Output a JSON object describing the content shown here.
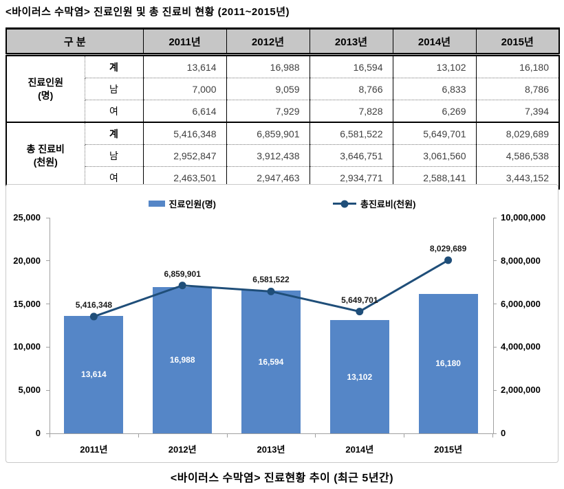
{
  "page": {
    "title": "<바이러스 수막염> 진료인원 및 총 진료비 현황 (2011~2015년)",
    "caption": "<바이러스 수막염> 진료현황 추이 (최근 5년간)"
  },
  "table": {
    "header": [
      "구 분",
      "2011년",
      "2012년",
      "2013년",
      "2014년",
      "2015년"
    ],
    "sections": [
      {
        "label": "진료인원",
        "unit": "(명)",
        "rows": [
          {
            "label": "계",
            "values": [
              "13,614",
              "16,988",
              "16,594",
              "13,102",
              "16,180"
            ]
          },
          {
            "label": "남",
            "values": [
              "7,000",
              "9,059",
              "8,766",
              "6,833",
              "8,786"
            ]
          },
          {
            "label": "여",
            "values": [
              "6,614",
              "7,929",
              "7,828",
              "6,269",
              "7,394"
            ]
          }
        ]
      },
      {
        "label": "총 진료비",
        "unit": "(천원)",
        "rows": [
          {
            "label": "계",
            "values": [
              "5,416,348",
              "6,859,901",
              "6,581,522",
              "5,649,701",
              "8,029,689"
            ]
          },
          {
            "label": "남",
            "values": [
              "2,952,847",
              "3,912,438",
              "3,646,751",
              "3,061,560",
              "4,586,538"
            ]
          },
          {
            "label": "여",
            "values": [
              "2,463,501",
              "2,947,463",
              "2,934,771",
              "2,588,141",
              "3,443,152"
            ]
          }
        ]
      }
    ]
  },
  "chart_data": {
    "type": "bar",
    "subtype": "combo-bar-line-dual-axis",
    "categories": [
      "2011년",
      "2012년",
      "2013년",
      "2014년",
      "2015년"
    ],
    "series": [
      {
        "name": "진료인원(명)",
        "type": "bar",
        "axis": "left",
        "values": [
          13614,
          16988,
          16594,
          13102,
          16180
        ],
        "labels": [
          "13,614",
          "16,988",
          "16,594",
          "13,102",
          "16,180"
        ],
        "color": "#5586c7"
      },
      {
        "name": "총진료비(천원)",
        "type": "line",
        "axis": "right",
        "values": [
          5416348,
          6859901,
          6581522,
          5649701,
          8029689
        ],
        "labels": [
          "5,416,348",
          "6,859,901",
          "6,581,522",
          "5,649,701",
          "8,029,689"
        ],
        "color": "#1f4e79"
      }
    ],
    "left_axis": {
      "min": 0,
      "max": 25000,
      "step": 5000,
      "ticks": [
        "0",
        "5,000",
        "10,000",
        "15,000",
        "20,000",
        "25,000"
      ]
    },
    "right_axis": {
      "min": 0,
      "max": 10000000,
      "step": 2000000,
      "ticks": [
        "0",
        "2,000,000",
        "4,000,000",
        "6,000,000",
        "8,000,000",
        "10,000,000"
      ]
    },
    "grid": false,
    "legend_position": "top",
    "axis_color": "#a0a0a0"
  }
}
